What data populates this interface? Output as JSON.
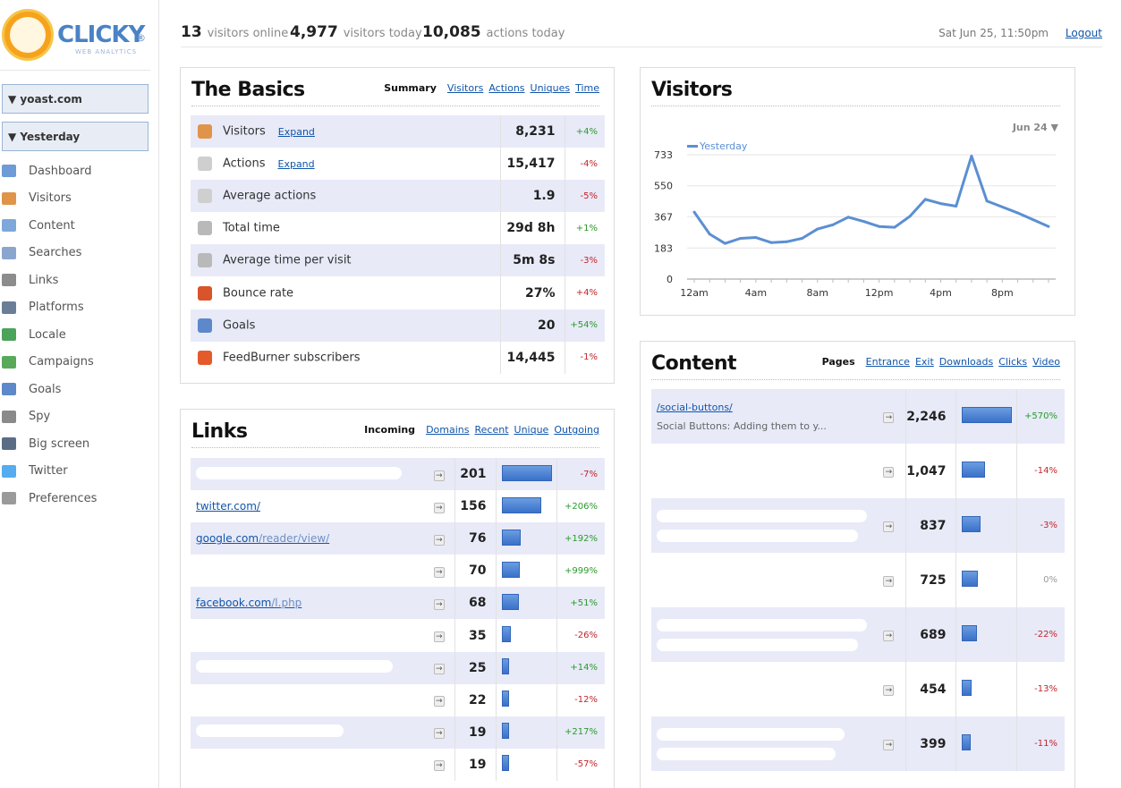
{
  "app": {
    "logo_text": "CLICKY",
    "logo_reg": "®",
    "logo_sub": "WEB ANALYTICS"
  },
  "sidebar": {
    "site_select": "▼ yoast.com",
    "date_select": "▼ Yesterday",
    "items": [
      {
        "label": "Dashboard",
        "icon": "dashboard-icon",
        "color": "#6f9bd6"
      },
      {
        "label": "Visitors",
        "icon": "visitors-icon",
        "color": "#e0944a"
      },
      {
        "label": "Content",
        "icon": "content-icon",
        "color": "#7ea7da"
      },
      {
        "label": "Searches",
        "icon": "search-icon",
        "color": "#8aa6cf"
      },
      {
        "label": "Links",
        "icon": "link-icon",
        "color": "#8c8c8c"
      },
      {
        "label": "Platforms",
        "icon": "platforms-icon",
        "color": "#6b7e97"
      },
      {
        "label": "Locale",
        "icon": "globe-icon",
        "color": "#4ca35a"
      },
      {
        "label": "Campaigns",
        "icon": "campaigns-icon",
        "color": "#5aa95a"
      },
      {
        "label": "Goals",
        "icon": "goals-icon",
        "color": "#5d88c9"
      },
      {
        "label": "Spy",
        "icon": "eye-icon",
        "color": "#8a8a8a"
      },
      {
        "label": "Big screen",
        "icon": "tv-icon",
        "color": "#5a6d87"
      },
      {
        "label": "Twitter",
        "icon": "twitter-icon",
        "color": "#55acee"
      },
      {
        "label": "Preferences",
        "icon": "gear-icon",
        "color": "#9a9a9a"
      }
    ]
  },
  "topbar": {
    "visitors_online": "13",
    "visitors_online_label": "visitors online",
    "visitors_today": "4,977",
    "visitors_today_label": "visitors today",
    "actions_today": "10,085",
    "actions_today_label": "actions today",
    "datetime": "Sat Jun 25, 11:50pm",
    "logout": "Logout"
  },
  "basics": {
    "title": "The Basics",
    "active_tab": "Summary",
    "tabs": [
      "Visitors",
      "Actions",
      "Uniques",
      "Time"
    ],
    "expand_label": "Expand",
    "rows": [
      {
        "label": "Visitors",
        "value": "8,231",
        "change": "+4%",
        "dir": "up",
        "icon": "visitors-icon",
        "color": "#e0944a",
        "expand": true
      },
      {
        "label": "Actions",
        "value": "15,417",
        "change": "-4%",
        "dir": "down",
        "icon": "mouse-icon",
        "color": "#cfcfcf",
        "expand": true
      },
      {
        "label": "Average actions",
        "value": "1.9",
        "change": "-5%",
        "dir": "down",
        "icon": "mouse-icon",
        "color": "#cfcfcf",
        "expand": false
      },
      {
        "label": "Total time",
        "value": "29d 8h",
        "change": "+1%",
        "dir": "up",
        "icon": "clock-icon",
        "color": "#b9b9b9",
        "expand": false
      },
      {
        "label": "Average time per visit",
        "value": "5m 8s",
        "change": "-3%",
        "dir": "down",
        "icon": "clock-icon",
        "color": "#b9b9b9",
        "expand": false
      },
      {
        "label": "Bounce rate",
        "value": "27%",
        "change": "+4%",
        "dir": "down",
        "icon": "bounce-icon",
        "color": "#d9532b",
        "expand": false
      },
      {
        "label": "Goals",
        "value": "20",
        "change": "+54%",
        "dir": "up",
        "icon": "goals-icon",
        "color": "#5d88c9",
        "expand": false
      },
      {
        "label": "FeedBurner subscribers",
        "value": "14,445",
        "change": "-1%",
        "dir": "down",
        "icon": "feedburner-icon",
        "color": "#e45a2b",
        "expand": false
      }
    ]
  },
  "visitors_chart": {
    "title": "Visitors",
    "range_label": "Jun 24 ▼",
    "legend": "Yesterday",
    "line_color": "#5b8fd3"
  },
  "chart_data": {
    "type": "line",
    "title": "Visitors",
    "x": [
      "12am",
      "1am",
      "2am",
      "3am",
      "4am",
      "5am",
      "6am",
      "7am",
      "8am",
      "9am",
      "10am",
      "11am",
      "12pm",
      "1pm",
      "2pm",
      "3pm",
      "4pm",
      "5pm",
      "6pm",
      "7pm",
      "8pm",
      "9pm",
      "10pm",
      "11pm"
    ],
    "xticks": [
      "12am",
      "4am",
      "8am",
      "12pm",
      "4pm",
      "8pm"
    ],
    "yticks": [
      "0",
      "183",
      "367",
      "550",
      "733"
    ],
    "ylim": [
      0,
      733
    ],
    "series": [
      {
        "name": "Yesterday",
        "values": [
          395,
          265,
          210,
          240,
          245,
          215,
          220,
          240,
          295,
          320,
          365,
          340,
          310,
          305,
          370,
          470,
          445,
          430,
          725,
          460,
          425,
          390,
          350,
          310
        ]
      }
    ],
    "legend_position": "top-left",
    "grid": true
  },
  "links": {
    "title": "Links",
    "active_tab": "Incoming",
    "tabs": [
      "Domains",
      "Recent",
      "Unique",
      "Outgoing"
    ],
    "rows": [
      {
        "domain": "",
        "path": "",
        "count": "201",
        "bar": 1.0,
        "change": "-7%",
        "dir": "down",
        "blur": 230
      },
      {
        "domain": "twitter.com/",
        "path": "",
        "count": "156",
        "bar": 0.78,
        "change": "+206%",
        "dir": "up",
        "blur": 0
      },
      {
        "domain": "google.com",
        "path": "/reader/view/",
        "count": "76",
        "bar": 0.38,
        "change": "+192%",
        "dir": "up",
        "blur": 0
      },
      {
        "domain": "",
        "path": "",
        "count": "70",
        "bar": 0.35,
        "change": "+999%",
        "dir": "up",
        "blur": 0
      },
      {
        "domain": "facebook.com",
        "path": "/l.php",
        "count": "68",
        "bar": 0.34,
        "change": "+51%",
        "dir": "up",
        "blur": 0
      },
      {
        "domain": "",
        "path": "",
        "count": "35",
        "bar": 0.18,
        "change": "-26%",
        "dir": "down",
        "blur": 0
      },
      {
        "domain": "",
        "path": "",
        "count": "25",
        "bar": 0.12,
        "change": "+14%",
        "dir": "up",
        "blur": 220
      },
      {
        "domain": "",
        "path": "",
        "count": "22",
        "bar": 0.11,
        "change": "-12%",
        "dir": "down",
        "blur": 0
      },
      {
        "domain": "",
        "path": "",
        "count": "19",
        "bar": 0.1,
        "change": "+217%",
        "dir": "up",
        "blur": 165
      },
      {
        "domain": "",
        "path": "",
        "count": "19",
        "bar": 0.1,
        "change": "-57%",
        "dir": "down",
        "blur": 0
      }
    ]
  },
  "content": {
    "title": "Content",
    "active_tab": "Pages",
    "tabs": [
      "Entrance",
      "Exit",
      "Downloads",
      "Clicks",
      "Video"
    ],
    "rows": [
      {
        "url": "/social-buttons/",
        "page_title": "Social Buttons: Adding them to y...",
        "count": "2,246",
        "bar": 1.0,
        "change": "+570%",
        "dir": "up",
        "blur": 0
      },
      {
        "url": "",
        "page_title": "",
        "count": "1,047",
        "bar": 0.47,
        "change": "-14%",
        "dir": "down",
        "blur": 0
      },
      {
        "url": "",
        "page_title": "",
        "count": "837",
        "bar": 0.37,
        "change": "-3%",
        "dir": "down",
        "blur": 235
      },
      {
        "url": "",
        "page_title": "",
        "count": "725",
        "bar": 0.32,
        "change": "0%",
        "dir": "flat",
        "blur": 0
      },
      {
        "url": "",
        "page_title": "",
        "count": "689",
        "bar": 0.31,
        "change": "-22%",
        "dir": "down",
        "blur": 235
      },
      {
        "url": "",
        "page_title": "",
        "count": "454",
        "bar": 0.2,
        "change": "-13%",
        "dir": "down",
        "blur": 0
      },
      {
        "url": "",
        "page_title": "",
        "count": "399",
        "bar": 0.18,
        "change": "-11%",
        "dir": "down",
        "blur": 210
      }
    ]
  }
}
